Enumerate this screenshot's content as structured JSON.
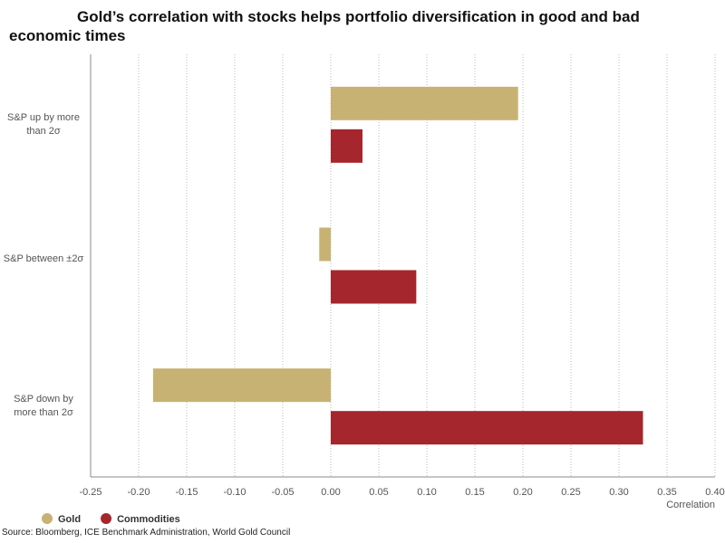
{
  "chart_data": {
    "type": "hbar",
    "title": "Gold’s correlation with stocks helps portfolio diversification in good and bad economic times",
    "categories": [
      "S&P up by more than 2σ",
      "S&P between ±2σ",
      "S&P down by more than 2σ"
    ],
    "series": [
      {
        "name": "Gold",
        "color": "#c8b273",
        "values": [
          0.195,
          -0.012,
          -0.185
        ]
      },
      {
        "name": "Commodities",
        "color": "#a6262d",
        "values": [
          0.033,
          0.089,
          0.325
        ]
      }
    ],
    "xlabel": "Correlation",
    "xlim": [
      -0.25,
      0.4
    ],
    "xticks": [
      -0.25,
      {
        "value": -0.2,
        "label": "-0.20"
      },
      -0.15,
      {
        "value": -0.1,
        "label": "-0.10"
      },
      -0.05,
      {
        "value": 0,
        "label": "0.00"
      },
      0.05,
      {
        "value": 0.1,
        "label": "0.10"
      },
      0.15,
      {
        "value": 0.2,
        "label": "0.20"
      },
      0.25,
      {
        "value": 0.3,
        "label": "0.30"
      },
      0.35,
      {
        "value": 0.4,
        "label": "0.40"
      }
    ],
    "grid": true,
    "source": "Source: Bloomberg, ICE Benchmark Administration, World Gold Council"
  }
}
